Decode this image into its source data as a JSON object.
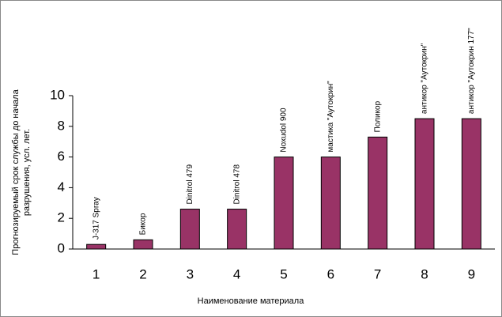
{
  "chart_data": {
    "type": "bar",
    "ylabel": [
      "Прогнозируемый срок службы до начала",
      "разрушения, усл. лет."
    ],
    "xlabel": "Наименование материала",
    "categories": [
      "1",
      "2",
      "3",
      "4",
      "5",
      "6",
      "7",
      "8",
      "9"
    ],
    "values": [
      0.3,
      0.6,
      2.6,
      2.6,
      6.0,
      6.0,
      7.3,
      8.5,
      8.5
    ],
    "bar_labels": [
      "J-317 Spray",
      "Бикор",
      "Dinitrol 479",
      "Dinitrol 478",
      "Noxudol 900",
      "мастика \"Аутокрин\"",
      "Поликор",
      "антикор \"Аутокрин\"",
      "антикор \"Аутокрин 177\""
    ],
    "color": "#993366",
    "ylim": [
      0,
      10
    ],
    "yticks": [
      0,
      2,
      4,
      6,
      8,
      10
    ],
    "grid": false
  }
}
